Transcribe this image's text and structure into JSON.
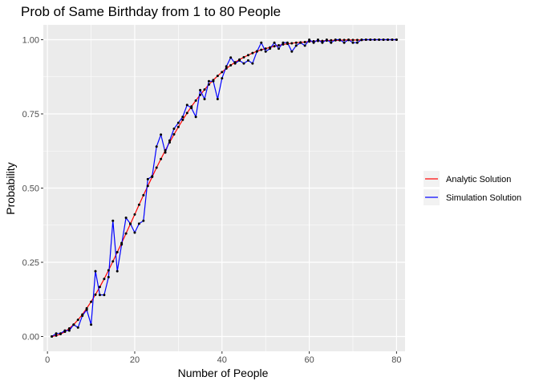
{
  "chart_data": {
    "type": "line",
    "title": "Prob of Same Birthday from 1 to 80 People",
    "xlabel": "Number of People",
    "ylabel": "Probability",
    "xlim": [
      -0.95,
      81.95
    ],
    "ylim": [
      -0.05,
      1.05
    ],
    "x_ticks": [
      0,
      20,
      40,
      60,
      80
    ],
    "x_tick_labels": [
      "0",
      "20",
      "40",
      "60",
      "80"
    ],
    "y_ticks": [
      0,
      0.25,
      0.5,
      0.75,
      1
    ],
    "y_tick_labels": [
      "0.00",
      "0.25",
      "0.50",
      "0.75",
      "1.00"
    ],
    "grid": true,
    "legend_position": "right",
    "series": [
      {
        "name": "Analytic Solution",
        "color": "#ff0000",
        "x_start": 1,
        "values": [
          0.0,
          0.003,
          0.008,
          0.016,
          0.027,
          0.04,
          0.056,
          0.074,
          0.095,
          0.117,
          0.141,
          0.167,
          0.194,
          0.223,
          0.253,
          0.284,
          0.315,
          0.347,
          0.379,
          0.411,
          0.444,
          0.476,
          0.507,
          0.538,
          0.569,
          0.598,
          0.627,
          0.654,
          0.681,
          0.706,
          0.73,
          0.753,
          0.775,
          0.795,
          0.814,
          0.832,
          0.849,
          0.864,
          0.878,
          0.891,
          0.903,
          0.914,
          0.924,
          0.933,
          0.941,
          0.948,
          0.955,
          0.961,
          0.966,
          0.97,
          0.974,
          0.978,
          0.981,
          0.984,
          0.986,
          0.988,
          0.99,
          0.991,
          0.992,
          0.994,
          0.995,
          0.996,
          0.996,
          0.997,
          0.998,
          0.998,
          0.998,
          0.999,
          0.999,
          0.999,
          0.999,
          0.999,
          1.0,
          1.0,
          1.0,
          1.0,
          1.0,
          1.0,
          1.0,
          1.0
        ]
      },
      {
        "name": "Simulation Solution",
        "color": "#0000ff",
        "x_start": 1,
        "values": [
          0.0,
          0.01,
          0.01,
          0.02,
          0.02,
          0.04,
          0.03,
          0.07,
          0.09,
          0.04,
          0.22,
          0.14,
          0.14,
          0.2,
          0.39,
          0.22,
          0.31,
          0.4,
          0.38,
          0.35,
          0.38,
          0.39,
          0.53,
          0.54,
          0.64,
          0.68,
          0.62,
          0.66,
          0.7,
          0.72,
          0.74,
          0.78,
          0.77,
          0.74,
          0.83,
          0.8,
          0.86,
          0.86,
          0.8,
          0.87,
          0.91,
          0.94,
          0.92,
          0.93,
          0.92,
          0.93,
          0.92,
          0.96,
          0.99,
          0.96,
          0.97,
          0.99,
          0.97,
          0.99,
          0.99,
          0.96,
          0.98,
          0.99,
          0.98,
          1.0,
          0.99,
          1.0,
          0.99,
          1.0,
          0.99,
          1.0,
          1.0,
          0.99,
          1.0,
          0.99,
          0.99,
          1.0,
          1.0,
          1.0,
          1.0,
          1.0,
          1.0,
          1.0,
          1.0,
          1.0
        ]
      }
    ]
  }
}
